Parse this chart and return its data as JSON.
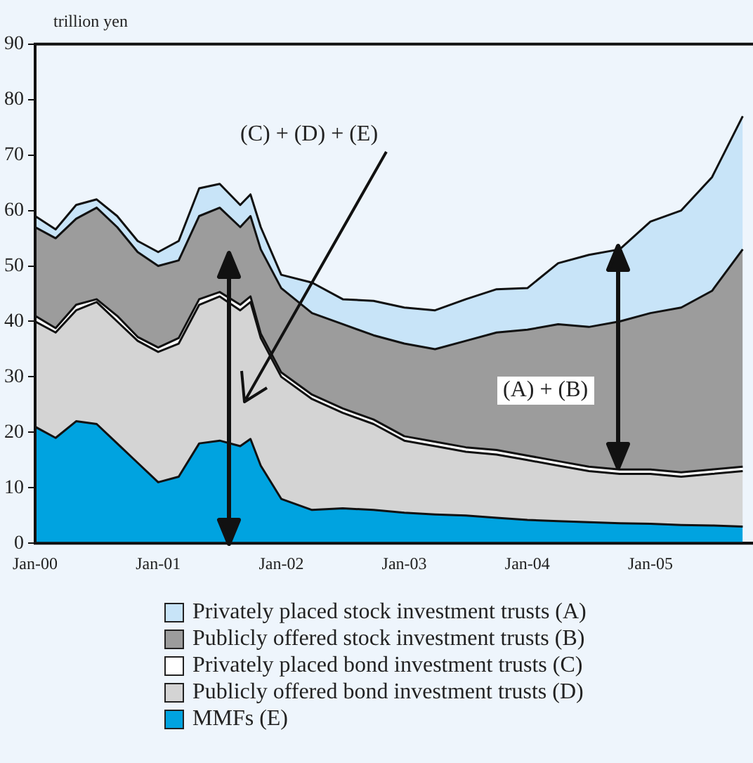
{
  "chart_data": {
    "type": "area",
    "stacked": true,
    "ylabel": "trillion yen",
    "legend": "bottom",
    "marker": "none",
    "x": [
      "2000-01",
      "2000-03",
      "2000-05",
      "2000-07",
      "2000-09",
      "2000-11",
      "2001-01",
      "2001-03",
      "2001-05",
      "2001-07",
      "2001-09",
      "2001-10",
      "2001-11",
      "2002-01",
      "2002-04",
      "2002-07",
      "2002-10",
      "2003-01",
      "2003-04",
      "2003-07",
      "2003-10",
      "2004-01",
      "2004-04",
      "2004-07",
      "2004-10",
      "2005-01",
      "2005-04",
      "2005-07",
      "2005-10"
    ],
    "xlim": [
      "2000-01",
      "2005-11"
    ],
    "xticks": [
      {
        "value": "2000-01",
        "label": "Jan-00"
      },
      {
        "value": "2001-01",
        "label": "Jan-01"
      },
      {
        "value": "2002-01",
        "label": "Jan-02"
      },
      {
        "value": "2003-01",
        "label": "Jan-03"
      },
      {
        "value": "2004-01",
        "label": "Jan-04"
      },
      {
        "value": "2005-01",
        "label": "Jan-05"
      }
    ],
    "ylim": [
      0,
      90
    ],
    "yticks": [
      0,
      10,
      20,
      30,
      40,
      50,
      60,
      70,
      80,
      90
    ],
    "series": [
      {
        "name": "MMFs (E)",
        "color": "#00a3e0",
        "values": [
          21,
          19,
          22,
          21.5,
          18,
          14.5,
          11,
          12,
          18,
          18.5,
          17.5,
          18.8,
          14,
          8,
          6,
          6.3,
          6,
          5.5,
          5.2,
          5,
          4.6,
          4.2,
          4,
          3.8,
          3.6,
          3.5,
          3.3,
          3.2,
          3
        ]
      },
      {
        "name": "Publicly offered bond investment trusts (D)",
        "color": "#d4d4d4",
        "values": [
          19,
          19,
          20,
          22,
          22,
          22,
          23.5,
          24,
          25,
          26,
          24.5,
          24.7,
          23,
          22,
          20,
          17.2,
          15.5,
          13,
          12.3,
          11.5,
          11.4,
          10.8,
          10,
          9.2,
          8.9,
          9,
          8.7,
          9.3,
          10
        ]
      },
      {
        "name": "Privately placed bond investment trusts (C)",
        "color": "#ffffff",
        "values": [
          1,
          0.8,
          1,
          0.5,
          1,
          0.7,
          0.8,
          1,
          1,
          0.8,
          1,
          1,
          0.8,
          0.8,
          0.8,
          0.8,
          0.8,
          0.8,
          0.8,
          0.8,
          0.8,
          0.8,
          0.8,
          0.8,
          0.8,
          0.8,
          0.8,
          0.8,
          0.8
        ]
      },
      {
        "name": "Publicly offered stock investment trusts (B)",
        "color": "#9c9c9c",
        "values": [
          16,
          16.2,
          15.5,
          16.5,
          16,
          15.3,
          14.7,
          14,
          15,
          15.2,
          14,
          14.5,
          15.2,
          15.2,
          14.7,
          15.2,
          15.2,
          16.7,
          16.7,
          19.2,
          21.2,
          22.7,
          24.7,
          25.2,
          26.7,
          28.2,
          29.7,
          32.2,
          39.2
        ]
      },
      {
        "name": "Privately placed stock investment trusts (A)",
        "color": "#c8e4f8",
        "values": [
          2,
          1.6,
          2.5,
          1.5,
          2,
          2,
          2.5,
          3.5,
          5,
          4.3,
          4,
          3.9,
          4,
          2.4,
          5.5,
          4.5,
          6.2,
          6.5,
          7,
          7.5,
          7.8,
          7.5,
          11,
          13,
          13,
          16.5,
          17.5,
          20.5,
          24
        ]
      }
    ],
    "annotations": [
      "(C) + (D) + (E)",
      "(A) + (B)"
    ]
  }
}
